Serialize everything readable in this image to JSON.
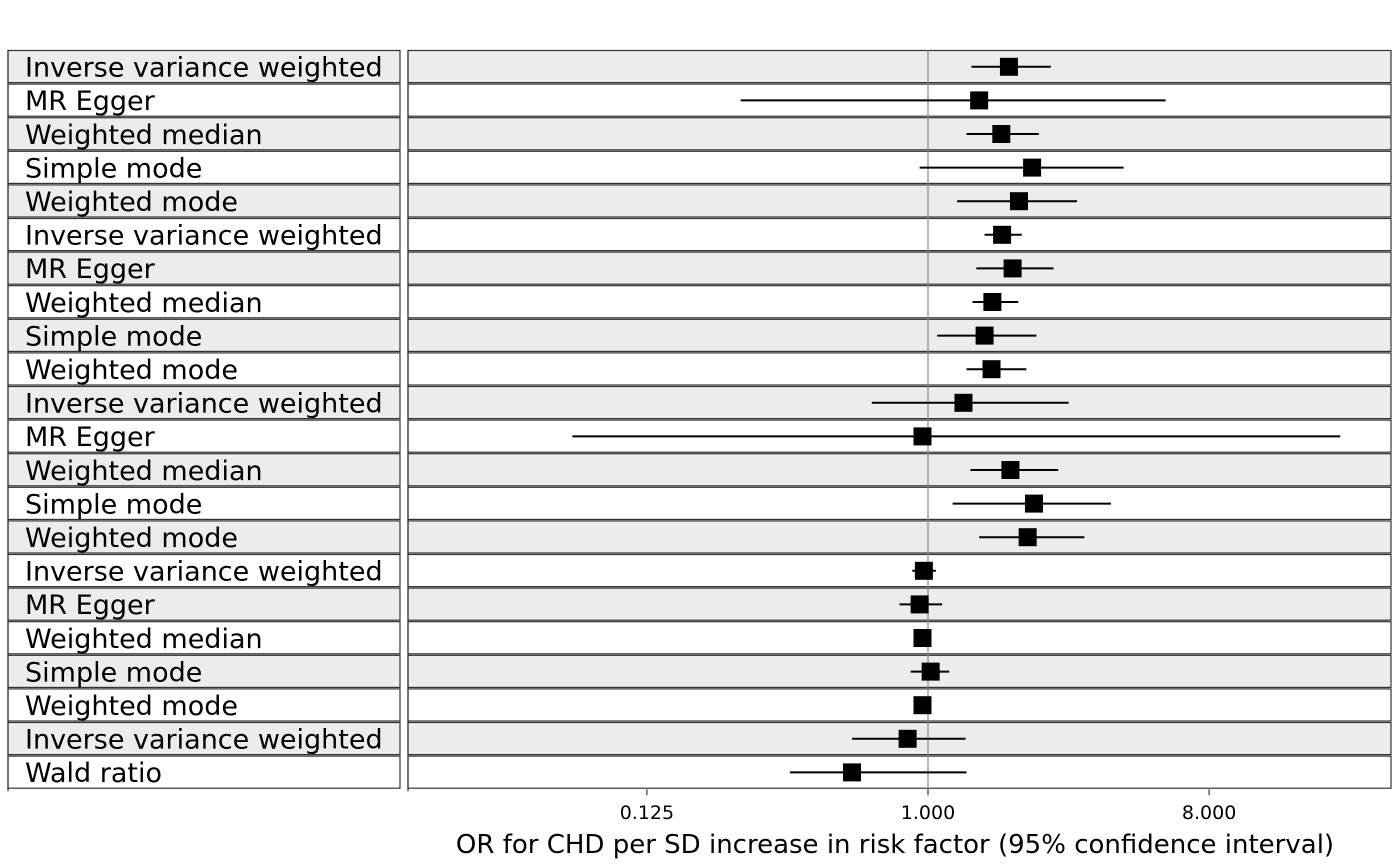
{
  "chart_data": {
    "type": "forest",
    "xlabel": "OR for CHD per SD increase in risk factor (95% confidence interval)",
    "x_scale": "log2",
    "xlim": [
      0.0313,
      32
    ],
    "x_ticks": [
      {
        "value": 0.125,
        "label": "0.125"
      },
      {
        "value": 1.0,
        "label": "1.000"
      },
      {
        "value": 8.0,
        "label": "8.000"
      }
    ],
    "reference_line": 1.0,
    "grid": false,
    "rows": [
      {
        "label": "Inverse variance weighted",
        "or": 1.82,
        "lower": 1.38,
        "upper": 2.48
      },
      {
        "label": "MR Egger",
        "or": 1.46,
        "lower": 0.25,
        "upper": 5.8
      },
      {
        "label": "Weighted median",
        "or": 1.72,
        "lower": 1.33,
        "upper": 2.27
      },
      {
        "label": "Simple mode",
        "or": 2.16,
        "lower": 0.94,
        "upper": 4.25
      },
      {
        "label": "Weighted mode",
        "or": 1.96,
        "lower": 1.24,
        "upper": 3.01
      },
      {
        "label": "Inverse variance weighted",
        "or": 1.73,
        "lower": 1.52,
        "upper": 2.0
      },
      {
        "label": "MR Egger",
        "or": 1.87,
        "lower": 1.43,
        "upper": 2.53
      },
      {
        "label": "Weighted median",
        "or": 1.61,
        "lower": 1.39,
        "upper": 1.95
      },
      {
        "label": "Simple mode",
        "or": 1.52,
        "lower": 1.07,
        "upper": 2.23
      },
      {
        "label": "Weighted mode",
        "or": 1.6,
        "lower": 1.33,
        "upper": 2.07
      },
      {
        "label": "Inverse variance weighted",
        "or": 1.3,
        "lower": 0.66,
        "upper": 2.83
      },
      {
        "label": "MR Egger",
        "or": 0.96,
        "lower": 0.072,
        "upper": 21.1
      },
      {
        "label": "Weighted median",
        "or": 1.84,
        "lower": 1.37,
        "upper": 2.62
      },
      {
        "label": "Simple mode",
        "or": 2.19,
        "lower": 1.2,
        "upper": 3.87
      },
      {
        "label": "Weighted mode",
        "or": 2.09,
        "lower": 1.46,
        "upper": 3.18
      },
      {
        "label": "Inverse variance weighted",
        "or": 0.97,
        "lower": 0.89,
        "upper": 1.06
      },
      {
        "label": "MR Egger",
        "or": 0.94,
        "lower": 0.81,
        "upper": 1.11
      },
      {
        "label": "Weighted median",
        "or": 0.96,
        "lower": 0.9,
        "upper": 1.02
      },
      {
        "label": "Simple mode",
        "or": 1.02,
        "lower": 0.88,
        "upper": 1.17
      },
      {
        "label": "Weighted mode",
        "or": 0.96,
        "lower": 0.93,
        "upper": 0.99
      },
      {
        "label": "Inverse variance weighted",
        "or": 0.86,
        "lower": 0.57,
        "upper": 1.32
      },
      {
        "label": "Wald ratio",
        "or": 0.57,
        "lower": 0.36,
        "upper": 1.33
      }
    ]
  },
  "colors": {
    "shaded_row": "#ececec",
    "plain_row": "#ffffff",
    "border": "#333333",
    "reference_line": "#888888",
    "marker": "#000000"
  }
}
